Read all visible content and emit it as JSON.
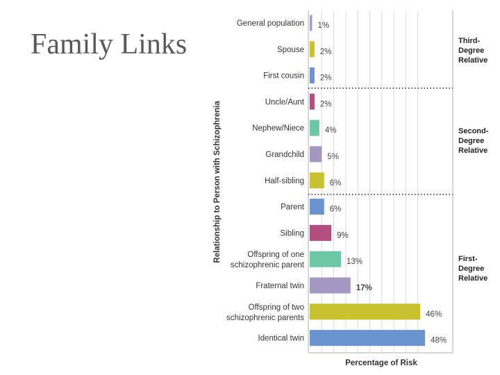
{
  "slide": {
    "title": "Family Links"
  },
  "chart_data": {
    "type": "bar",
    "orientation": "horizontal",
    "xlabel": "Percentage of Risk",
    "ylabel": "Relationship to Person with Schizophrenia",
    "xlim": [
      0,
      50
    ],
    "grid": true,
    "categories": [
      "General population",
      "Spouse",
      "First cousin",
      "Uncle/Aunt",
      "Nephew/Niece",
      "Grandchild",
      "Half-sibling",
      "Parent",
      "Sibling",
      "Offspring of one schizophrenic parent",
      "Fraternal twin",
      "Offspring of two schizophrenic parents",
      "Identical twin"
    ],
    "values": [
      1,
      2,
      2,
      2,
      4,
      5,
      6,
      6,
      9,
      13,
      17,
      46,
      48
    ],
    "value_labels": [
      "1%",
      "2%",
      "2%",
      "2%",
      "4%",
      "5%",
      "6%",
      "6%",
      "9%",
      "13%",
      "17%",
      "46%",
      "48%"
    ],
    "colors": [
      "#9c9cd0",
      "#c8c230",
      "#6a94cf",
      "#b24f7f",
      "#6cc8a4",
      "#a497c2",
      "#c8c230",
      "#6a94cf",
      "#b24f7f",
      "#6cc8a4",
      "#a497c2",
      "#c8c230",
      "#6a94cf"
    ],
    "groups": [
      {
        "label": [
          "Third-",
          "Degree",
          "Relative"
        ]
      },
      {
        "label": [
          "Second-",
          "Degree",
          "Relative"
        ]
      },
      {
        "label": [
          "First-",
          "Degree",
          "Relative"
        ]
      }
    ]
  }
}
